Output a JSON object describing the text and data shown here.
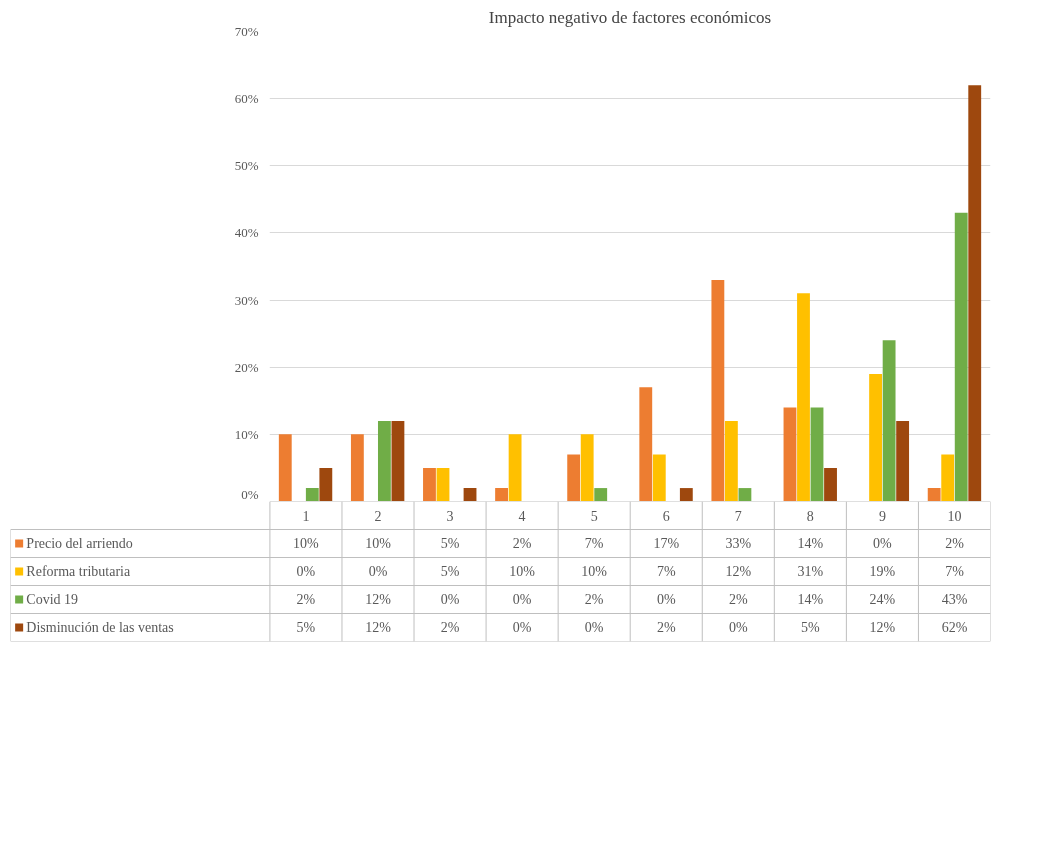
{
  "chart_data": {
    "type": "bar",
    "title": "Impacto negativo de factores económicos",
    "categories": [
      "1",
      "2",
      "3",
      "4",
      "5",
      "6",
      "7",
      "8",
      "9",
      "10"
    ],
    "series": [
      {
        "name": "Precio del arriendo",
        "color": "#ed7d31",
        "values": [
          10,
          10,
          5,
          2,
          7,
          17,
          33,
          14,
          0,
          2
        ],
        "value_labels": [
          "10%",
          "10%",
          "5%",
          "2%",
          "7%",
          "17%",
          "33%",
          "14%",
          "0%",
          "2%"
        ]
      },
      {
        "name": "Reforma tributaria",
        "color": "#ffc000",
        "values": [
          0,
          0,
          5,
          10,
          10,
          7,
          12,
          31,
          19,
          7
        ],
        "value_labels": [
          "0%",
          "0%",
          "5%",
          "10%",
          "10%",
          "7%",
          "12%",
          "31%",
          "19%",
          "7%"
        ]
      },
      {
        "name": "Covid 19",
        "color": "#70ad47",
        "values": [
          2,
          12,
          0,
          0,
          2,
          0,
          2,
          14,
          24,
          43
        ],
        "value_labels": [
          "2%",
          "12%",
          "0%",
          "0%",
          "2%",
          "0%",
          "2%",
          "14%",
          "24%",
          "43%"
        ]
      },
      {
        "name": "Disminución de las ventas",
        "color": "#9e480e",
        "values": [
          5,
          12,
          2,
          0,
          0,
          2,
          0,
          5,
          12,
          62
        ],
        "value_labels": [
          "5%",
          "12%",
          "2%",
          "0%",
          "0%",
          "2%",
          "0%",
          "5%",
          "12%",
          "62%"
        ]
      }
    ],
    "ylim": [
      0,
      70
    ],
    "yticks": [
      {
        "value": 0,
        "label": "0%"
      },
      {
        "value": 10,
        "label": "10%"
      },
      {
        "value": 20,
        "label": "20%"
      },
      {
        "value": 30,
        "label": "30%"
      },
      {
        "value": 40,
        "label": "40%"
      },
      {
        "value": 50,
        "label": "50%"
      },
      {
        "value": 60,
        "label": "60%"
      },
      {
        "value": 70,
        "label": "70%"
      }
    ],
    "grid": "y",
    "legend": "bottom"
  }
}
